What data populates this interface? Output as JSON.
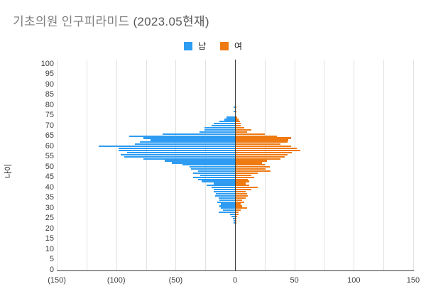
{
  "title": {
    "part1": "기초의원 인구피라미드 ",
    "part2": "(2023.05현재)"
  },
  "legend": [
    {
      "label": "남",
      "color": "#2d9cf2"
    },
    {
      "label": "여",
      "color": "#ef7a12"
    }
  ],
  "y_axis_title": "나이",
  "chart_data": {
    "type": "bar",
    "variant": "population-pyramid",
    "title": "기초의원 인구피라미드 (2023.05현재)",
    "ylabel": "나이",
    "xlabel": "",
    "xlim": [
      -150,
      150
    ],
    "ylim": [
      0,
      100
    ],
    "grid": true,
    "legend_position": "top",
    "x_tick_values": [
      -150,
      -100,
      -50,
      0,
      50,
      100,
      150
    ],
    "x_tick_labels": [
      "(150)",
      "(100)",
      "(50)",
      "0",
      "50",
      "100",
      "150"
    ],
    "grid_step": 25,
    "y_ticks": [
      0,
      5,
      10,
      15,
      20,
      25,
      30,
      35,
      40,
      45,
      50,
      55,
      60,
      65,
      70,
      75,
      80,
      85,
      90,
      95,
      100
    ],
    "ages": [
      20,
      21,
      22,
      23,
      24,
      25,
      26,
      27,
      28,
      29,
      30,
      31,
      32,
      33,
      34,
      35,
      36,
      37,
      38,
      39,
      40,
      41,
      42,
      43,
      44,
      45,
      46,
      47,
      48,
      49,
      50,
      51,
      52,
      53,
      54,
      55,
      56,
      57,
      58,
      59,
      60,
      61,
      62,
      63,
      64,
      65,
      66,
      67,
      68,
      69,
      70,
      71,
      72,
      73,
      74,
      75,
      76,
      77,
      78,
      79,
      80
    ],
    "series": [
      {
        "name": "남",
        "direction": "left",
        "color": "#2d9cf2",
        "values": [
          0,
          0,
          0,
          1,
          1,
          2,
          3,
          4,
          14,
          10,
          12,
          13,
          12,
          15,
          13,
          14,
          17,
          16,
          18,
          18,
          20,
          24,
          18,
          28,
          31,
          35,
          29,
          35,
          31,
          37,
          38,
          44,
          53,
          59,
          77,
          93,
          96,
          91,
          98,
          98,
          115,
          84,
          80,
          71,
          77,
          89,
          61,
          30,
          26,
          26,
          20,
          18,
          13,
          9,
          7,
          0,
          0,
          1,
          0,
          1,
          0
        ]
      },
      {
        "name": "여",
        "direction": "right",
        "color": "#ef7a12",
        "values": [
          0,
          0,
          0,
          1,
          1,
          1,
          2,
          3,
          3,
          5,
          10,
          6,
          5,
          8,
          6,
          9,
          11,
          10,
          9,
          14,
          19,
          12,
          9,
          12,
          11,
          16,
          14,
          19,
          30,
          26,
          29,
          25,
          23,
          27,
          38,
          42,
          44,
          48,
          55,
          52,
          47,
          38,
          44,
          45,
          47,
          35,
          25,
          10,
          14,
          8,
          5,
          5,
          4,
          3,
          2,
          0,
          0,
          1,
          0,
          1,
          0
        ]
      }
    ]
  }
}
